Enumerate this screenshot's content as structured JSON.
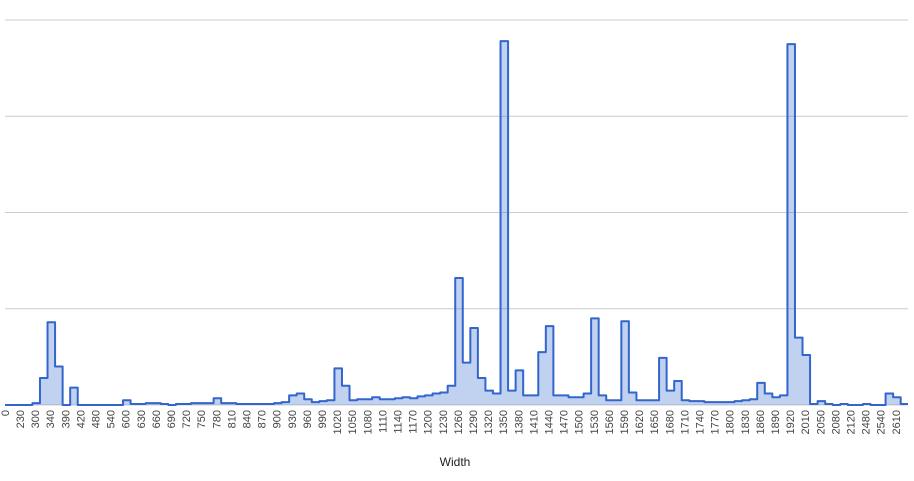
{
  "chart_data": {
    "type": "stepped-area",
    "x_label": "Width",
    "categories": [
      "0",
      null,
      "230",
      null,
      "300",
      null,
      "340",
      null,
      "390",
      null,
      "420",
      null,
      "480",
      null,
      "540",
      null,
      "600",
      null,
      "630",
      null,
      "660",
      null,
      "690",
      null,
      "720",
      null,
      "750",
      null,
      "780",
      null,
      "810",
      null,
      "840",
      null,
      "870",
      null,
      "900",
      null,
      "930",
      null,
      "960",
      null,
      "990",
      null,
      "1020",
      null,
      "1050",
      null,
      "1080",
      null,
      "1110",
      null,
      "1140",
      null,
      "1170",
      null,
      "1200",
      null,
      "1230",
      null,
      "1260",
      null,
      "1290",
      null,
      "1320",
      null,
      "1350",
      null,
      "1380",
      null,
      "1410",
      null,
      "1440",
      null,
      "1470",
      null,
      "1500",
      null,
      "1530",
      null,
      "1560",
      null,
      "1590",
      null,
      "1620",
      null,
      "1650",
      null,
      "1680",
      null,
      "1710",
      null,
      "1740",
      null,
      "1770",
      null,
      "1800",
      null,
      "1830",
      null,
      "1860",
      null,
      "1890",
      null,
      "1920",
      null,
      "2010",
      null,
      "2050",
      null,
      "2080",
      null,
      "2120",
      null,
      "2480",
      null,
      "2540",
      null,
      "2610",
      null
    ],
    "values": [
      0,
      0,
      0,
      0,
      0.02,
      0.28,
      0.86,
      0.4,
      0,
      0.18,
      0,
      0,
      0,
      0,
      0,
      0,
      0.05,
      0.01,
      0.01,
      0.02,
      0.02,
      0.01,
      0,
      0.01,
      0.01,
      0.02,
      0.02,
      0.02,
      0.07,
      0.02,
      0.02,
      0.01,
      0.01,
      0.01,
      0.01,
      0.01,
      0.02,
      0.03,
      0.1,
      0.12,
      0.06,
      0.03,
      0.04,
      0.05,
      0.38,
      0.2,
      0.05,
      0.06,
      0.06,
      0.08,
      0.06,
      0.06,
      0.07,
      0.08,
      0.07,
      0.09,
      0.1,
      0.12,
      0.13,
      0.2,
      1.32,
      0.44,
      0.8,
      0.28,
      0.15,
      0.12,
      3.78,
      0.15,
      0.36,
      0.1,
      0.1,
      0.55,
      0.82,
      0.1,
      0.1,
      0.08,
      0.08,
      0.12,
      0.9,
      0.1,
      0.05,
      0.05,
      0.87,
      0.13,
      0.05,
      0.05,
      0.05,
      0.49,
      0.15,
      0.25,
      0.05,
      0.04,
      0.04,
      0.03,
      0.03,
      0.03,
      0.03,
      0.04,
      0.05,
      0.06,
      0.23,
      0.12,
      0.08,
      0.1,
      3.75,
      0.7,
      0.52,
      0.01,
      0.04,
      0.01,
      0,
      0.01,
      0,
      0,
      0.01,
      0,
      0,
      0.12,
      0.08,
      0.01
    ],
    "color": "#3366cc",
    "ylim": [
      0,
      4
    ],
    "yticks": [
      0,
      1,
      2,
      3,
      4
    ],
    "grid": true
  }
}
